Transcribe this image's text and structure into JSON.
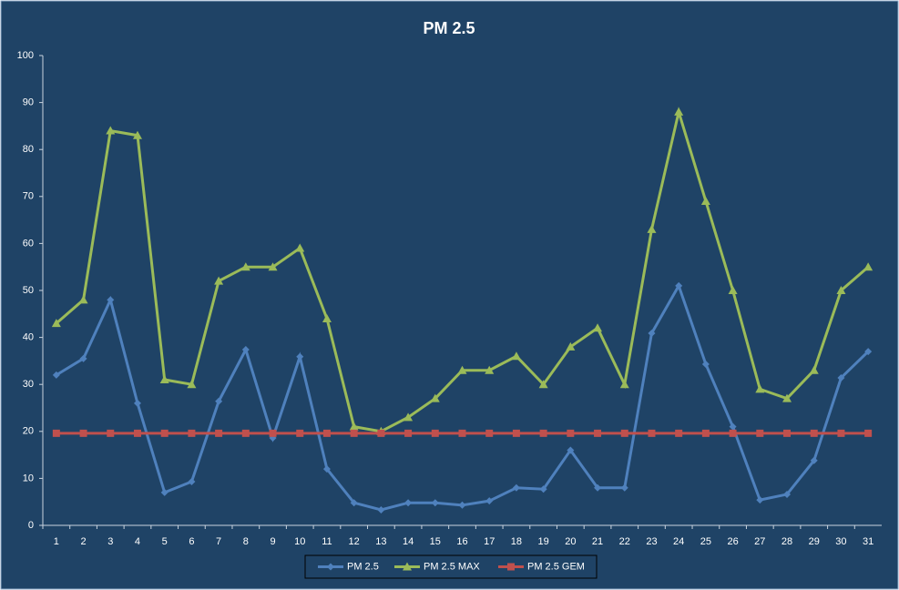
{
  "chart_data": {
    "type": "line",
    "title": "PM 2.5",
    "categories": [
      "1",
      "2",
      "3",
      "4",
      "5",
      "6",
      "7",
      "8",
      "9",
      "10",
      "11",
      "12",
      "13",
      "14",
      "15",
      "16",
      "17",
      "18",
      "19",
      "20",
      "21",
      "22",
      "23",
      "24",
      "25",
      "26",
      "27",
      "28",
      "29",
      "30",
      "31"
    ],
    "series": [
      {
        "name": "PM 2.5",
        "color": "#4f81bd",
        "marker": "diamond",
        "values": [
          32,
          35.5,
          48,
          26,
          7,
          9.3,
          26.4,
          37.4,
          18.6,
          35.9,
          12,
          4.8,
          3.3,
          4.8,
          4.8,
          4.3,
          5.2,
          8,
          7.7,
          16,
          8,
          8,
          40.9,
          51,
          34.3,
          21,
          5.4,
          6.6,
          13.8,
          31.4,
          37
        ]
      },
      {
        "name": "PM 2.5 MAX",
        "color": "#9bbb59",
        "marker": "triangle",
        "values": [
          43,
          48,
          84,
          83,
          31,
          30,
          52,
          55,
          55,
          59,
          44,
          21,
          20,
          23,
          27,
          33,
          33,
          36,
          30,
          38,
          42,
          30,
          63,
          88,
          69,
          50,
          29,
          27,
          33,
          50,
          55
        ]
      },
      {
        "name": "PM 2.5 GEM",
        "color": "#c0504d",
        "marker": "square",
        "values": [
          19.6,
          19.6,
          19.6,
          19.6,
          19.6,
          19.6,
          19.6,
          19.6,
          19.6,
          19.6,
          19.6,
          19.6,
          19.6,
          19.6,
          19.6,
          19.6,
          19.6,
          19.6,
          19.6,
          19.6,
          19.6,
          19.6,
          19.6,
          19.6,
          19.6,
          19.6,
          19.6,
          19.6,
          19.6,
          19.6,
          19.6
        ]
      }
    ],
    "ylim": [
      0,
      100
    ],
    "yticks": [
      0,
      10,
      20,
      30,
      40,
      50,
      60,
      70,
      80,
      90,
      100
    ],
    "grid": false,
    "legend": "bottom"
  }
}
